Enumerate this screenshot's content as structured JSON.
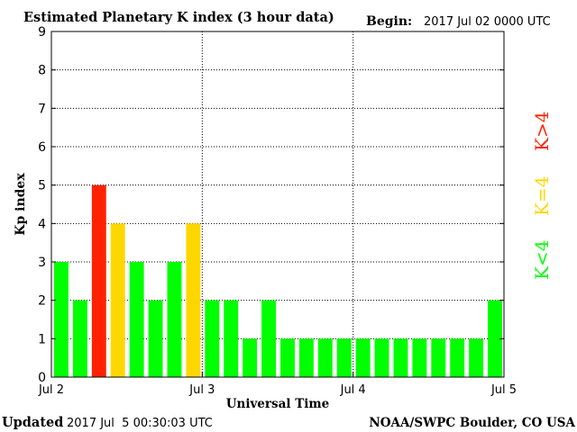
{
  "header": {
    "title": "Estimated Planetary K index (3 hour data)",
    "begin_label": "Begin:",
    "begin_value": "2017 Jul 02 0000 UTC"
  },
  "footer": {
    "updated_label": "Updated",
    "updated_value": "2017 Jul  5 00:30:03 UTC",
    "source": "NOAA/SWPC Boulder, CO USA"
  },
  "legend": {
    "items": [
      {
        "label": "K<4",
        "color": "#00ff00"
      },
      {
        "label": "K=4",
        "color": "#ffd700"
      },
      {
        "label": "K>4",
        "color": "#ff2200"
      }
    ]
  },
  "chart_data": {
    "type": "bar",
    "title": "Estimated Planetary K index (3 hour data)",
    "xlabel": "Universal Time",
    "ylabel": "Kp index",
    "ylim": [
      0,
      9
    ],
    "yticks": [
      "0",
      "1",
      "2",
      "3",
      "4",
      "5",
      "6",
      "7",
      "8",
      "9"
    ],
    "xticks": [
      "Jul 2",
      "Jul 3",
      "Jul 4",
      "Jul 5"
    ],
    "grid": true,
    "bars_per_day": 8,
    "colors": {
      "below": "#00ff00",
      "equal": "#ffd700",
      "above": "#ff2200"
    },
    "values": [
      3,
      2,
      5,
      4,
      3,
      2,
      3,
      4,
      2,
      2,
      1,
      2,
      1,
      1,
      1,
      1,
      1,
      1,
      1,
      1,
      1,
      1,
      1,
      2
    ]
  }
}
